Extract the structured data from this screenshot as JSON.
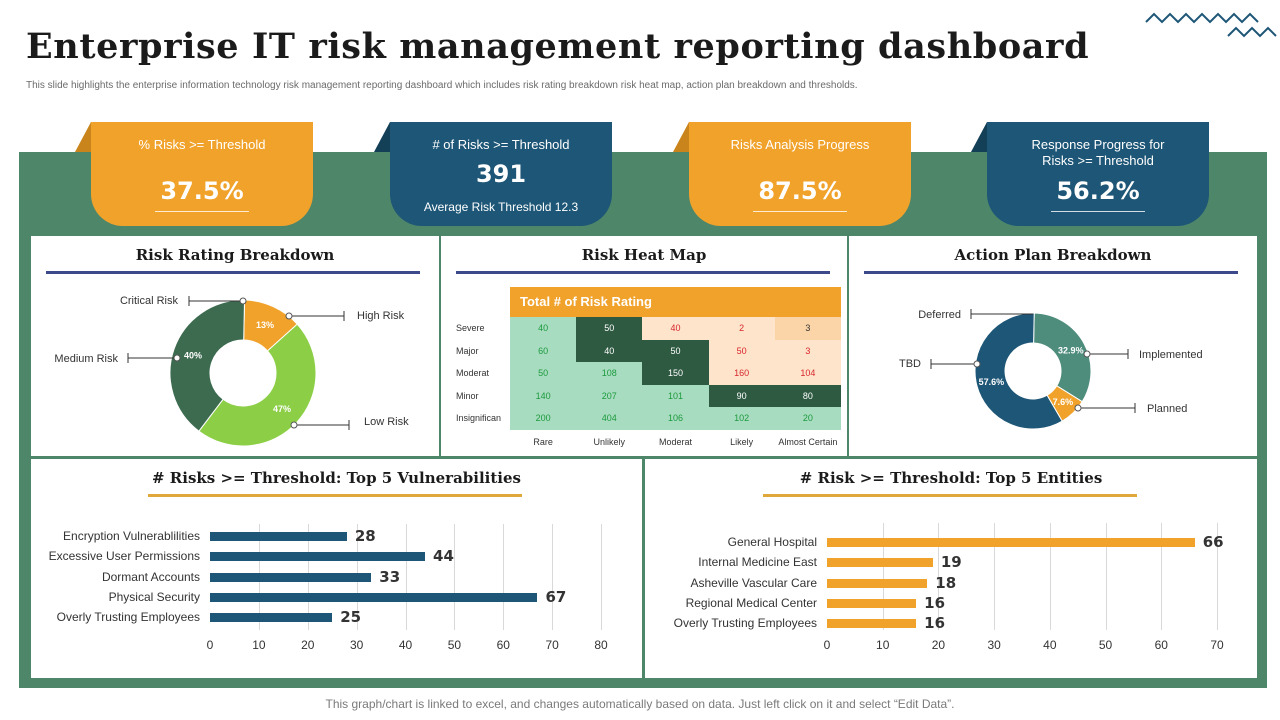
{
  "header": {
    "title": "Enterprise IT risk management reporting dashboard",
    "subtitle": "This slide highlights the enterprise information technology risk management reporting dashboard which includes risk rating breakdown risk heat map, action plan breakdown and thresholds."
  },
  "kpis": [
    {
      "label": "% Risks >= Threshold",
      "value": "37.5%",
      "color": "orange"
    },
    {
      "label": "# of Risks >= Threshold",
      "value": "391",
      "sub": "Average Risk Threshold 12.3",
      "color": "blue"
    },
    {
      "label": "Risks Analysis Progress",
      "value": "87.5%",
      "color": "orange"
    },
    {
      "label": "Response Progress for Risks >= Threshold",
      "value": "56.2%",
      "color": "blue"
    }
  ],
  "risk_rating": {
    "title": "Risk Rating Breakdown",
    "slices": [
      {
        "name": "Critical Risk",
        "value": 0,
        "label": "",
        "color": "#7b3ab0"
      },
      {
        "name": "High Risk",
        "value": 13,
        "label": "13%",
        "color": "#f0a22b"
      },
      {
        "name": "Low Risk",
        "value": 47,
        "label": "47%",
        "color": "#8ccf47"
      },
      {
        "name": "Medium Risk",
        "value": 40,
        "label": "40%",
        "color": "#3d6b50"
      }
    ]
  },
  "heat_map": {
    "title": "Risk Heat Map",
    "header": "Total # of Risk Rating",
    "rows": [
      "Severe",
      "Major",
      "Moderat",
      "Minor",
      "Insignifican"
    ],
    "cols": [
      "Rare",
      "Unlikely",
      "Moderat",
      "Likely",
      "Almost Certain"
    ],
    "values": [
      [
        "40",
        "50",
        "40",
        "2",
        "3"
      ],
      [
        "60",
        "40",
        "50",
        "50",
        "3"
      ],
      [
        "50",
        "108",
        "150",
        "160",
        "104"
      ],
      [
        "140",
        "207",
        "101",
        "90",
        "80"
      ],
      [
        "200",
        "404",
        "106",
        "102",
        "20"
      ]
    ],
    "colors": {
      "low": "#a8dcc0",
      "mid": "#2f5a42",
      "high": "#fde4cb",
      "amber": "#fbd4a8",
      "deep": "#2f5a42",
      "text_green": "#1b9a3c",
      "text_red": "#d8262b",
      "text_white": "#ffffff",
      "header_bg": "#f0a22b"
    }
  },
  "action_plan": {
    "title": "Action Plan Breakdown",
    "slices": [
      {
        "name": "Deferred",
        "value": 0,
        "label": "",
        "color": "#4f5bd5"
      },
      {
        "name": "Implemented",
        "value": 32.9,
        "label": "32.9%",
        "color": "#4e8c7c"
      },
      {
        "name": "Planned",
        "value": 7.6,
        "label": "7.6%",
        "color": "#f0a22b"
      },
      {
        "name": "TBD",
        "value": 57.6,
        "label": "57.6%",
        "color": "#1d5676"
      }
    ]
  },
  "vulnerabilities": {
    "title": "# Risks >= Threshold: Top 5 Vulnerabilities",
    "chart_data": {
      "type": "bar",
      "orientation": "horizontal",
      "categories": [
        "Encryption Vulnerablilities",
        "Excessive User Permissions",
        "Dormant Accounts",
        "Physical Security",
        "Overly Trusting Employees"
      ],
      "values": [
        28,
        44,
        33,
        67,
        25
      ],
      "xlim": [
        0,
        80
      ],
      "ticks": [
        "0",
        "10",
        "20",
        "30",
        "40",
        "50",
        "60",
        "70",
        "80"
      ],
      "color": "#1d5676"
    }
  },
  "entities": {
    "title": "# Risk >= Threshold: Top 5 Entities",
    "chart_data": {
      "type": "bar",
      "orientation": "horizontal",
      "categories": [
        "General Hospital",
        "Internal Medicine East",
        "Asheville Vascular Care",
        "Regional Medical Center",
        "Overly Trusting Employees"
      ],
      "values": [
        66,
        19,
        18,
        16,
        16
      ],
      "xlim": [
        0,
        70
      ],
      "ticks": [
        "0",
        "10",
        "20",
        "30",
        "40",
        "50",
        "60",
        "70"
      ],
      "color": "#f0a22b"
    }
  },
  "footer": "This graph/chart is linked to excel, and changes automatically based on data. Just left click on it and select “Edit Data”."
}
